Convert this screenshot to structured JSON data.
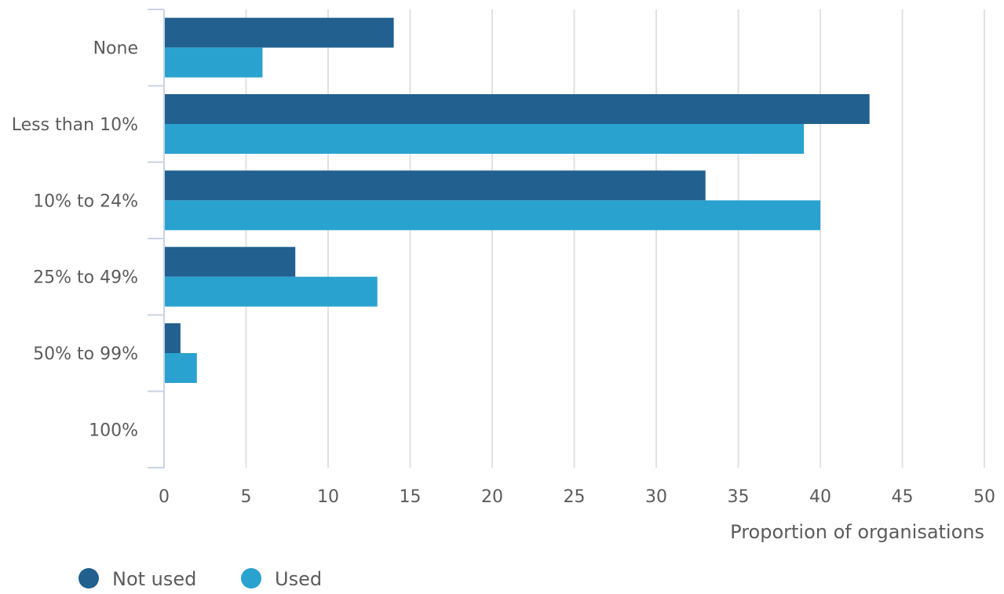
{
  "chart_data": {
    "type": "bar",
    "orientation": "horizontal",
    "categories": [
      "None",
      "Less than 10%",
      "10% to 24%",
      "25% to 49%",
      "50% to 99%",
      "100%"
    ],
    "series": [
      {
        "name": "Not used",
        "values": [
          14,
          43,
          33,
          8,
          1,
          0
        ],
        "color": "#21608f"
      },
      {
        "name": "Used",
        "values": [
          6,
          39,
          40,
          13,
          2,
          0
        ],
        "color": "#29a2cf"
      }
    ],
    "xlabel": "Proportion of organisations",
    "ylabel": "",
    "xlim": [
      0,
      50
    ],
    "xticks": [
      "0",
      "5",
      "10",
      "15",
      "20",
      "25",
      "30",
      "35",
      "40",
      "45",
      "50"
    ],
    "grid": true,
    "legend_position": "bottom-left"
  }
}
